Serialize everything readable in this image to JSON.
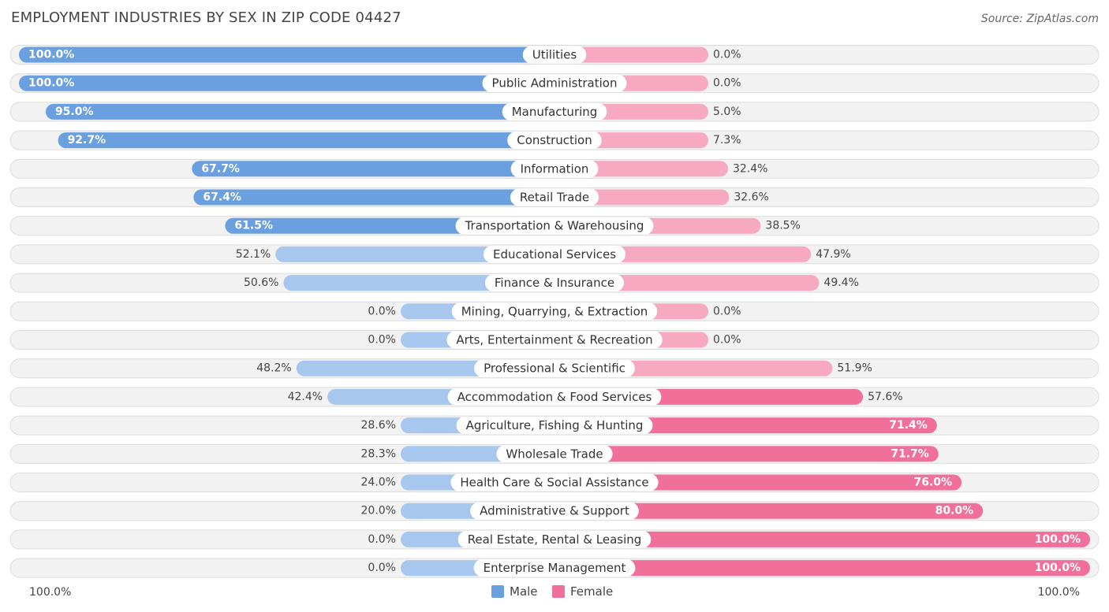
{
  "header": {
    "title": "EMPLOYMENT INDUSTRIES BY SEX IN ZIP CODE 04427",
    "source": "Source: ZipAtlas.com"
  },
  "colors": {
    "male": "#6a9fe0",
    "male_light": "#a8c7ee",
    "female": "#f0709a",
    "female_light": "#f7a9c2",
    "row_bg": "#f2f2f2",
    "row_border": "#dcdcdc"
  },
  "axis": {
    "left_label": "100.0%",
    "right_label": "100.0%"
  },
  "legend": {
    "male": "Male",
    "female": "Female"
  },
  "chart_data": {
    "type": "bar",
    "title": "EMPLOYMENT INDUSTRIES BY SEX IN ZIP CODE 04427",
    "orientation": "horizontal-diverging",
    "xlim": [
      -100,
      100
    ],
    "categories": [
      "Utilities",
      "Public Administration",
      "Manufacturing",
      "Construction",
      "Information",
      "Retail Trade",
      "Transportation & Warehousing",
      "Educational Services",
      "Finance & Insurance",
      "Mining, Quarrying, & Extraction",
      "Arts, Entertainment & Recreation",
      "Professional & Scientific",
      "Accommodation & Food Services",
      "Agriculture, Fishing & Hunting",
      "Wholesale Trade",
      "Health Care & Social Assistance",
      "Administrative & Support",
      "Real Estate, Rental & Leasing",
      "Enterprise Management"
    ],
    "series": [
      {
        "name": "Male",
        "values": [
          100.0,
          100.0,
          95.0,
          92.7,
          67.7,
          67.4,
          61.5,
          52.1,
          50.6,
          0.0,
          0.0,
          48.2,
          42.4,
          28.6,
          28.3,
          24.0,
          20.0,
          0.0,
          0.0
        ],
        "labels": [
          "100.0%",
          "100.0%",
          "95.0%",
          "92.7%",
          "67.7%",
          "67.4%",
          "61.5%",
          "52.1%",
          "50.6%",
          "0.0%",
          "0.0%",
          "48.2%",
          "42.4%",
          "28.6%",
          "28.3%",
          "24.0%",
          "20.0%",
          "0.0%",
          "0.0%"
        ]
      },
      {
        "name": "Female",
        "values": [
          0.0,
          0.0,
          5.0,
          7.3,
          32.4,
          32.6,
          38.5,
          47.9,
          49.4,
          0.0,
          0.0,
          51.9,
          57.6,
          71.4,
          71.7,
          76.0,
          80.0,
          100.0,
          100.0
        ],
        "labels": [
          "0.0%",
          "0.0%",
          "5.0%",
          "7.3%",
          "32.4%",
          "32.6%",
          "38.5%",
          "47.9%",
          "49.4%",
          "0.0%",
          "0.0%",
          "51.9%",
          "57.6%",
          "71.4%",
          "71.7%",
          "76.0%",
          "80.0%",
          "100.0%",
          "100.0%"
        ]
      }
    ],
    "legend": [
      "Male",
      "Female"
    ],
    "legend_position": "bottom-center"
  }
}
